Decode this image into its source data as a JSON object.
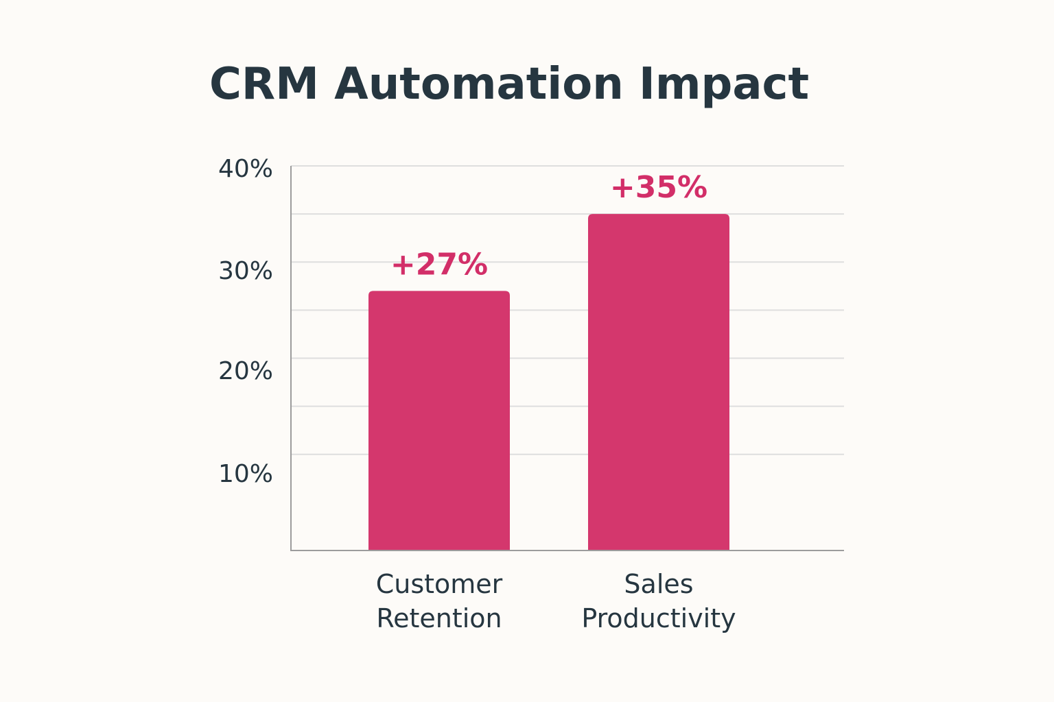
{
  "chart_data": {
    "type": "bar",
    "title": "CRM Automation Impact",
    "categories": [
      [
        "Customer",
        "Retention"
      ],
      [
        "Sales",
        "Productivity"
      ]
    ],
    "values": [
      27,
      35
    ],
    "value_labels": [
      "+27%",
      "+35%"
    ],
    "y_ticks": [
      {
        "value": 10,
        "label": "10%"
      },
      {
        "value": 20,
        "label": "20%"
      },
      {
        "value": 30,
        "label": "30%"
      },
      {
        "value": 40,
        "label": "40%"
      }
    ],
    "gridlines": [
      10,
      15,
      20,
      25,
      30,
      35,
      40
    ],
    "ylim": [
      0,
      40
    ],
    "xlabel": "",
    "ylabel": "",
    "legend": "none",
    "grid": true
  },
  "colors": {
    "bar": "#d4376d",
    "value_label": "#d22e68",
    "title": "#263640",
    "tick_label": "#263640",
    "category_label": "#263640",
    "grid": "#dedede",
    "axis": "#9c9c9c",
    "background": "#fdfbf8"
  }
}
